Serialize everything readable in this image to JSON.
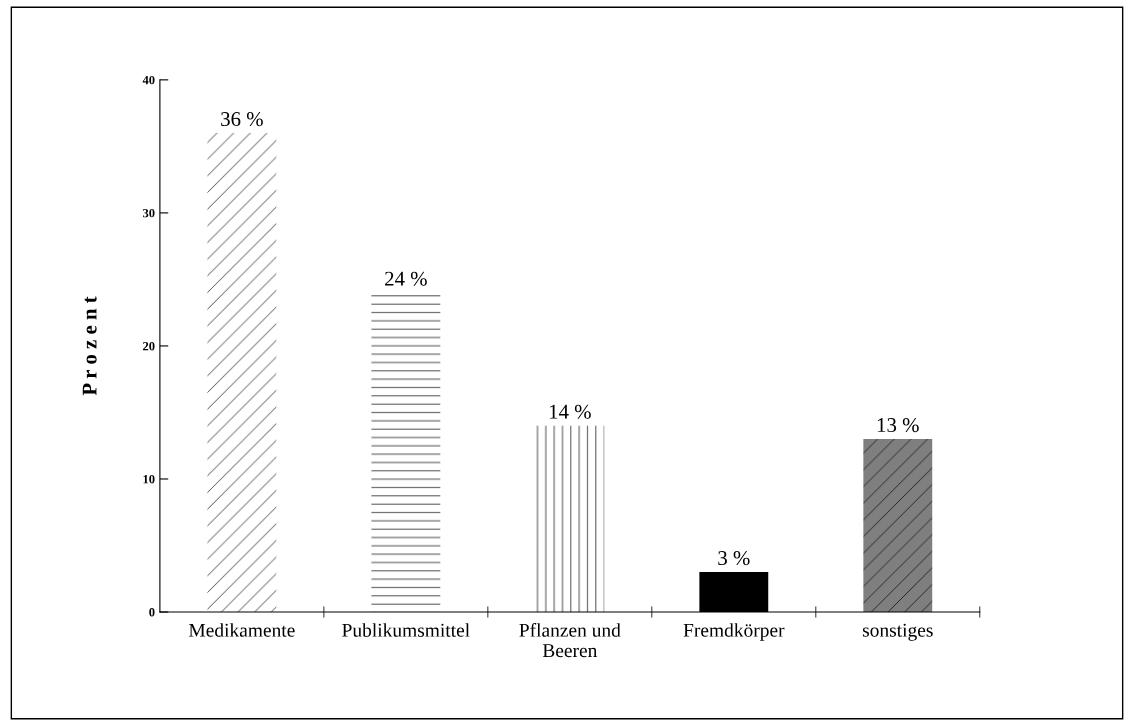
{
  "chart_data": {
    "type": "bar",
    "ylabel": "P r o z e n t",
    "categories": [
      "Medikamente",
      "Publikumsmittel",
      "Pflanzen und\nBeeren",
      "Fremdkörper",
      "sonstiges"
    ],
    "values": [
      36,
      24,
      14,
      3,
      13
    ],
    "colors": [
      "#ffffff",
      "#ffffff",
      "#ffffff",
      "#000000",
      "#7f7f7f"
    ],
    "value_labels": [
      "36 %",
      "24 %",
      "14 %",
      "3 %",
      "13 %"
    ],
    "ylim": [
      0,
      40
    ],
    "yticks": [
      0,
      10,
      20,
      30,
      40
    ],
    "grid": false,
    "legend": false
  }
}
